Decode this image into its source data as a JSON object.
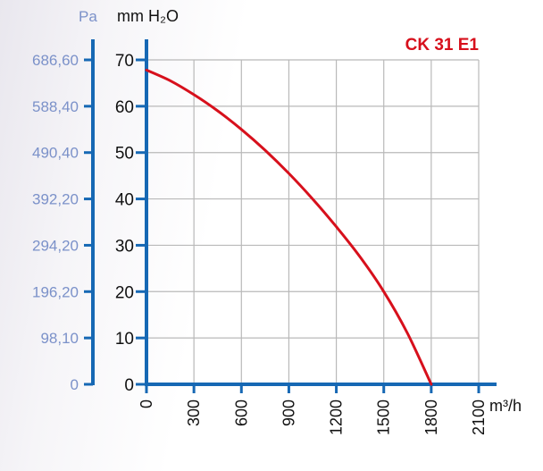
{
  "chart_data": {
    "type": "line",
    "title": "CK 31 E1",
    "xlabel": "m³/h",
    "ylabel": "mm H₂O",
    "ylabel_secondary": "Pa",
    "xlim": [
      0,
      2100
    ],
    "ylim": [
      0,
      70
    ],
    "x_ticks": [
      "0",
      "300",
      "600",
      "900",
      "1200",
      "1500",
      "1800",
      "2100"
    ],
    "y_ticks": [
      "0",
      "10",
      "20",
      "30",
      "40",
      "50",
      "60",
      "70"
    ],
    "y2_ticks": [
      "0",
      "98,10",
      "196,20",
      "294,20",
      "392,20",
      "490,40",
      "588,40",
      "686,60"
    ],
    "grid": true,
    "series": [
      {
        "name": "CK 31 E1",
        "x": [
          0,
          150,
          300,
          450,
          600,
          750,
          900,
          1050,
          1200,
          1350,
          1500,
          1650,
          1800
        ],
        "y": [
          67.8,
          65.5,
          62.5,
          59,
          55,
          50.5,
          45.5,
          40,
          34,
          27.5,
          20,
          11,
          0
        ]
      }
    ]
  },
  "colors": {
    "axis": "#1668b4",
    "grid": "#b9b9b9",
    "curve": "#d7101c",
    "pa_labels": "#7b91c9",
    "title": "#d7101c"
  }
}
